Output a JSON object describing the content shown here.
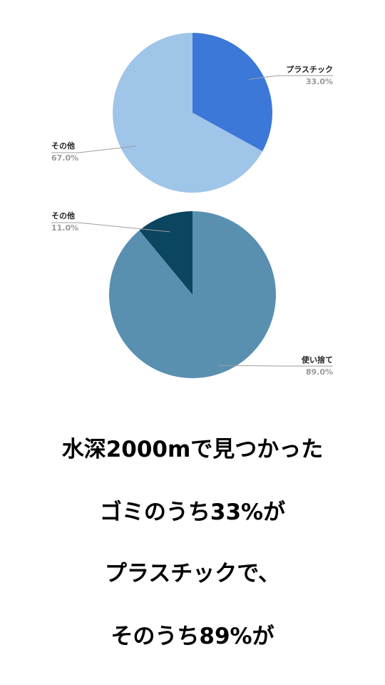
{
  "chart_data": [
    {
      "type": "pie",
      "start_angle": 0,
      "slices": [
        {
          "label": "プラスチック",
          "value": 33.0,
          "pct_label": "33.0%",
          "color": "#3c78d8"
        },
        {
          "label": "その他",
          "value": 67.0,
          "pct_label": "67.0%",
          "color": "#9fc5e8"
        }
      ]
    },
    {
      "type": "pie",
      "start_angle": 0,
      "slices": [
        {
          "label": "使い捨て",
          "value": 89.0,
          "pct_label": "89.0%",
          "color": "#5990b0"
        },
        {
          "label": "その他",
          "value": 11.0,
          "pct_label": "11.0%",
          "color": "#0b4560"
        }
      ]
    }
  ],
  "caption": {
    "line1": "水深2000mで見つかった",
    "line2": "ゴミのうち33%が",
    "line3": "プラスチックで、",
    "line4": "そのうち89%が"
  }
}
